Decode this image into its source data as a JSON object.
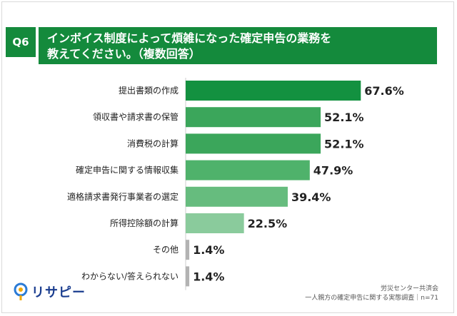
{
  "question": {
    "number": "Q6",
    "title_line1": "インボイス制度によって煩雑になった確定申告の業務を",
    "title_line2": "教えてください。（複数回答）"
  },
  "chart_data": {
    "type": "bar",
    "orientation": "horizontal",
    "categories": [
      "提出書類の作成",
      "領収書や請求書の保管",
      "消費税の計算",
      "確定申告に関する情報収集",
      "適格請求書発行事業者の選定",
      "所得控除額の計算",
      "その他",
      "わからない/答えられない"
    ],
    "values": [
      67.6,
      52.1,
      52.1,
      47.9,
      39.4,
      22.5,
      1.4,
      1.4
    ],
    "value_labels": [
      "67.6%",
      "52.1%",
      "52.1%",
      "47.9%",
      "39.4%",
      "22.5%",
      "1.4%",
      "1.4%"
    ],
    "colors": [
      "#139140",
      "#3ba65b",
      "#3ba65b",
      "#4fb26b",
      "#66bc7e",
      "#8acb9c",
      "#b3b3b3",
      "#b3b3b3"
    ],
    "xlim": [
      0,
      70
    ],
    "grid": false
  },
  "source": {
    "line1": "労災センター共済会",
    "line2": "一人親方の確定申告に関する実態調査｜n=71"
  },
  "logo": {
    "text": "リサピー",
    "icon": "pin-logo-icon"
  }
}
